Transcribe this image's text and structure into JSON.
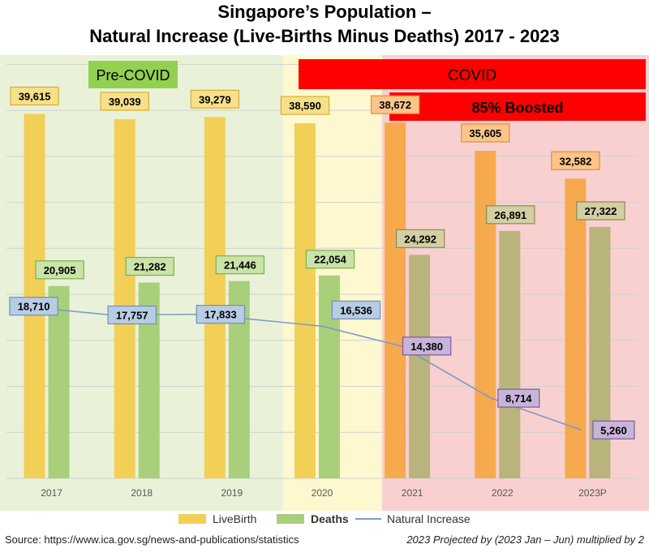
{
  "title": {
    "line1": "Singapore’s Population –",
    "line2": "Natural Increase (Live-Births Minus Deaths) 2017 - 2023"
  },
  "regions": {
    "pre_covid_label": "Pre-COVID",
    "covid_label": "COVID",
    "boosted_label": "85% Boosted"
  },
  "colors": {
    "pre_covid_bg": "#e9f2d9",
    "year2020_bg": "#fdf8cf",
    "covid_bg": "#f8d0d0",
    "pre_covid_box": "#92d050",
    "covid_box": "#ff0000",
    "live_birth": "#f2cf57",
    "live_birth_covid": "#f7a94d",
    "deaths": "#a9cf7b",
    "deaths_covid": "#b9b37c",
    "natural_increase_line": "#7f9bc5",
    "ni_label_pre": "#b8cce4",
    "ni_label_covid": "#c8b4d8"
  },
  "chart_data": {
    "type": "bar",
    "title": "Singapore’s Population – Natural Increase (Live-Births Minus Deaths) 2017 - 2023",
    "categories": [
      "2017",
      "2018",
      "2019",
      "2020",
      "2021",
      "2022",
      "2023P"
    ],
    "series": [
      {
        "name": "LiveBirth",
        "type": "bar",
        "values": [
          39615,
          39039,
          39279,
          38590,
          38672,
          35605,
          32582
        ],
        "labels": [
          "39,615",
          "39,039",
          "39,279",
          "38,590",
          "38,672",
          "35,605",
          "32,582"
        ]
      },
      {
        "name": "Deaths",
        "type": "bar",
        "values": [
          20905,
          21282,
          21446,
          22054,
          24292,
          26891,
          27322
        ],
        "labels": [
          "20,905",
          "21,282",
          "21,446",
          "22,054",
          "24,292",
          "26,891",
          "27,322"
        ]
      },
      {
        "name": "Natural Increase",
        "type": "line",
        "values": [
          18710,
          17757,
          17833,
          16536,
          14380,
          8714,
          5260
        ],
        "labels": [
          "18,710",
          "17,757",
          "17,833",
          "16,536",
          "14,380",
          "8,714",
          "5,260"
        ]
      }
    ],
    "ylim": [
      0,
      46000
    ],
    "grid": true,
    "legend": "bottom",
    "xlabel": "",
    "ylabel": ""
  },
  "legend": {
    "live_birth": "LiveBirth",
    "deaths": "Deaths",
    "natural_increase": "Natural Increase"
  },
  "footer": {
    "source": "Source:  https://www.ica.gov.sg/news-and-publications/statistics",
    "note": "2023 Projected by (2023 Jan – Jun) multiplied by 2"
  }
}
